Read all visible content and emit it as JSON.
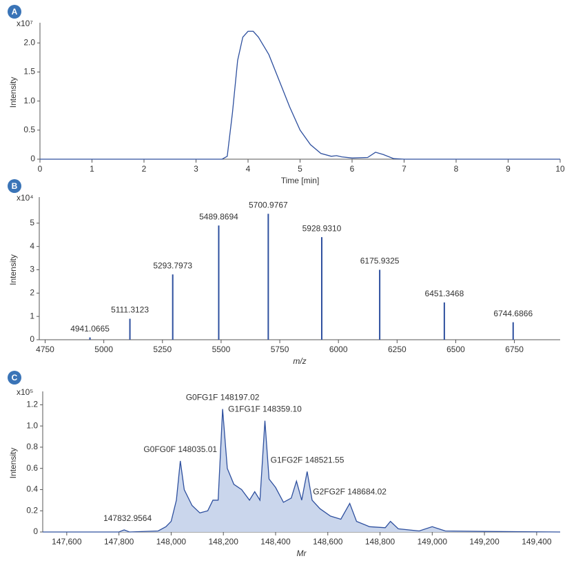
{
  "chart_data": [
    {
      "type": "line",
      "panel": "A",
      "y_multiplier": "x10⁷",
      "y_label": "Intensity",
      "x_label": "Time [min]",
      "x_label_style": "normal",
      "color": "#2d4f9e",
      "xlim": [
        0,
        10
      ],
      "xticks": [
        0,
        1,
        2,
        3,
        4,
        5,
        6,
        7,
        8,
        9,
        10
      ],
      "ylim": [
        0,
        2.3
      ],
      "yticks": [
        0,
        0.5,
        {
          "value": 1,
          "label": "1.0"
        },
        1.5,
        {
          "value": 2,
          "label": "2.0"
        }
      ],
      "x": [
        0,
        3.5,
        3.6,
        3.7,
        3.8,
        3.9,
        4.0,
        4.1,
        4.2,
        4.4,
        4.6,
        4.8,
        5.0,
        5.2,
        5.4,
        5.6,
        5.7,
        5.8,
        6.0,
        6.3,
        6.45,
        6.6,
        6.8,
        7,
        10
      ],
      "values": [
        0,
        0,
        0.05,
        0.8,
        1.7,
        2.1,
        2.2,
        2.2,
        2.1,
        1.8,
        1.35,
        0.9,
        0.5,
        0.25,
        0.1,
        0.05,
        0.06,
        0.04,
        0.02,
        0.03,
        0.12,
        0.08,
        0.01,
        0,
        0
      ]
    },
    {
      "type": "stem",
      "panel": "B",
      "y_multiplier": "x10⁴",
      "y_label": "Intensity",
      "x_label": "m/z",
      "x_label_style": "italic",
      "color": "#2d4f9e",
      "xlim": [
        4725,
        6945
      ],
      "xticks": [
        4750,
        5000,
        5250,
        5500,
        5750,
        6000,
        6250,
        6500,
        6750
      ],
      "ylim": [
        0,
        6
      ],
      "yticks": [
        0,
        1,
        2,
        3,
        4,
        5
      ],
      "x": [
        4941.0665,
        5111.3123,
        5293.7973,
        5489.8694,
        5700.9767,
        5928.931,
        6175.9325,
        6451.3468,
        6744.6866
      ],
      "labels": [
        "4941.0665",
        "5111.3123",
        "5293.7973",
        "5489.8694",
        "5700.9767",
        "5928.9310",
        "6175.9325",
        "6451.3468",
        "6744.6866"
      ],
      "values": [
        0.1,
        0.9,
        2.8,
        4.9,
        5.4,
        4.4,
        3.0,
        1.6,
        0.75
      ]
    },
    {
      "type": "area",
      "panel": "C",
      "y_multiplier": "x10⁵",
      "y_label": "Intensity",
      "x_label": "Mr",
      "x_label_style": "italic",
      "color": "#2d4f9e",
      "fill": "#cad6ec",
      "xlim": [
        147508,
        149490
      ],
      "xticks": [
        {
          "value": 147600,
          "label": "147,600"
        },
        {
          "value": 147800,
          "label": "147,800"
        },
        {
          "value": 148000,
          "label": "148,000"
        },
        {
          "value": 148200,
          "label": "148,200"
        },
        {
          "value": 148400,
          "label": "148,400"
        },
        {
          "value": 148600,
          "label": "148,600"
        },
        {
          "value": 148800,
          "label": "148,800"
        },
        {
          "value": 149000,
          "label": "149,000"
        },
        {
          "value": 149200,
          "label": "149,200"
        },
        {
          "value": 149400,
          "label": "149,400"
        }
      ],
      "ylim": [
        0,
        1.3
      ],
      "yticks": [
        0,
        0.2,
        0.4,
        0.6,
        0.8,
        {
          "value": 1,
          "label": "1.0"
        },
        1.2
      ],
      "x": [
        147508,
        147800,
        147820,
        147840,
        147950,
        147980,
        148000,
        148020,
        148035,
        148050,
        148080,
        148110,
        148140,
        148160,
        148180,
        148197,
        148215,
        148240,
        148270,
        148300,
        148320,
        148340,
        148359,
        148375,
        148400,
        148430,
        148460,
        148480,
        148500,
        148521,
        148540,
        148570,
        148610,
        148650,
        148684,
        148710,
        148760,
        148820,
        148840,
        148870,
        148950,
        149000,
        149050,
        149200,
        149490
      ],
      "values": [
        0,
        0,
        0.02,
        0,
        0.01,
        0.05,
        0.1,
        0.3,
        0.67,
        0.4,
        0.25,
        0.18,
        0.2,
        0.3,
        0.3,
        1.16,
        0.6,
        0.45,
        0.4,
        0.3,
        0.38,
        0.3,
        1.05,
        0.5,
        0.42,
        0.28,
        0.32,
        0.48,
        0.3,
        0.57,
        0.3,
        0.22,
        0.15,
        0.12,
        0.27,
        0.1,
        0.05,
        0.04,
        0.1,
        0.03,
        0.01,
        0.05,
        0.01,
        0.005,
        0
      ],
      "annotations": [
        {
          "label": "147832.9564",
          "x": 147832.9564,
          "y": 0.02
        },
        {
          "label": "G0FG0F 148035.01",
          "x": 148035.01,
          "y": 0.67
        },
        {
          "label": "G0FG1F 148197.02",
          "x": 148197.02,
          "y": 1.16
        },
        {
          "label": "G1FG1F 148359.10",
          "x": 148359.1,
          "y": 1.05
        },
        {
          "label": "G1FG2F 148521.55",
          "x": 148521.55,
          "y": 0.57
        },
        {
          "label": "G2FG2F 148684.02",
          "x": 148684.02,
          "y": 0.27
        }
      ]
    }
  ]
}
